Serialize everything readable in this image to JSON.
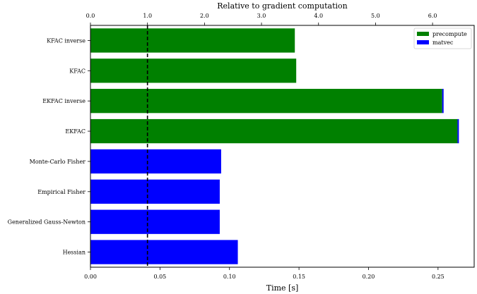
{
  "chart_data": {
    "type": "bar",
    "orientation": "horizontal",
    "title": "",
    "xlabel": "Time [s]",
    "x2label": "Relative to gradient computation",
    "ylabel": "",
    "xlim": [
      0,
      0.276
    ],
    "x2lim": [
      0,
      6.73
    ],
    "xticks": [
      "0.00",
      "0.05",
      "0.10",
      "0.15",
      "0.20",
      "0.25"
    ],
    "x2ticks": [
      "0.0",
      "1.0",
      "2.0",
      "3.0",
      "4.0",
      "5.0",
      "6.0"
    ],
    "categories": [
      "KFAC inverse",
      "KFAC",
      "EKFAC inverse",
      "EKFAC",
      "Monte-Carlo Fisher",
      "Empirical Fisher",
      "Generalized Gauss-Newton",
      "Hessian"
    ],
    "series": [
      {
        "name": "precompute",
        "color": "#008000",
        "values": [
          0.147,
          0.148,
          0.253,
          0.264,
          0,
          0,
          0,
          0
        ]
      },
      {
        "name": "matvec",
        "color": "#0000ff",
        "values": [
          0,
          0,
          0.001,
          0.001,
          0.094,
          0.093,
          0.093,
          0.106
        ]
      }
    ],
    "reference_line": {
      "x": 0.041,
      "style": "dashed"
    },
    "legend_position": "top-right",
    "grid": false
  }
}
